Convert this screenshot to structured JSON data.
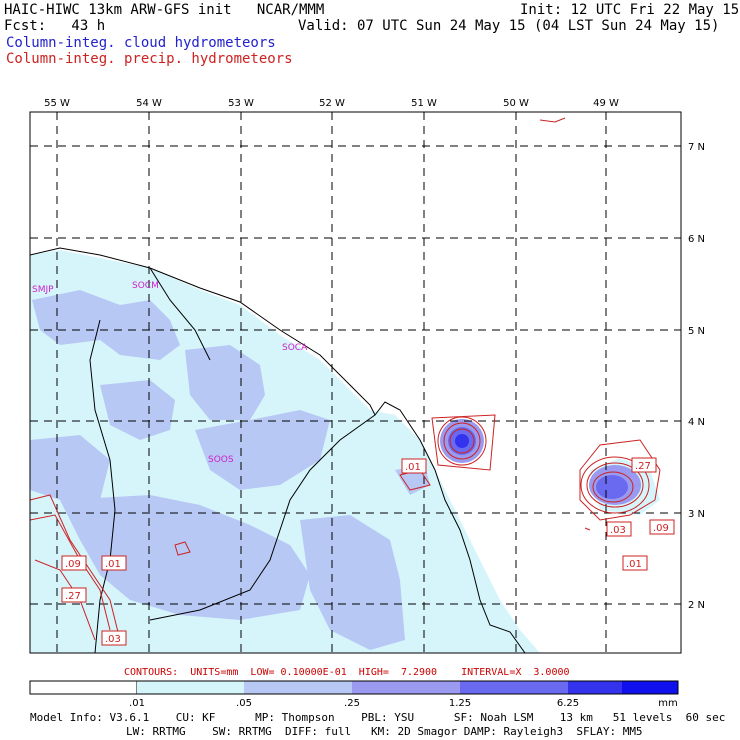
{
  "header": {
    "left1": "HAIC-HIWC 13km ARW-GFS init   NCAR/MMM",
    "left2": "Fcst:   43 h",
    "right1": "Init: 12 UTC Fri 22 May 15",
    "right2": "Valid: 07 UTC Sun 24 May 15 (04 LST Sun 24 May 15)",
    "legend_cloud": "Column-integ. cloud hydrometeors",
    "legend_precip": "Column-integ. precip. hydrometeors"
  },
  "longitudes": [
    "55 W",
    "54 W",
    "53 W",
    "52 W",
    "51 W",
    "50 W",
    "49 W"
  ],
  "latitudes": [
    "7 N",
    "6 N",
    "5 N",
    "4 N",
    "3 N",
    "2 N"
  ],
  "stations": [
    "SMJP",
    "SOCM",
    "SOCA",
    "SOOS"
  ],
  "contour_labels": [
    ".01",
    ".27",
    ".03",
    ".09",
    ".01",
    ".09",
    ".01",
    ".27",
    ".03"
  ],
  "contours_line": "CONTOURS:  UNITS=mm  LOW= 0.10000E-01  HIGH=  7.2900    INTERVAL=X  3.0000",
  "colorbar": {
    "ticks": [
      ".01",
      ".05",
      ".25",
      "1.25",
      "6.25"
    ],
    "units": "mm",
    "colors": [
      "#ffffff",
      "#d6f5fb",
      "#b8c8f5",
      "#9a9af0",
      "#6a6af0",
      "#3333ee",
      "#1010ee"
    ]
  },
  "footer": {
    "line1": "Model Info: V3.6.1    CU: KF      MP: Thompson    PBL: YSU      SF: Noah LSM    13 km   51 levels  60 sec",
    "line2": "LW: RRTMG    SW: RRTMG  DIFF: full   KM: 2D Smagor DAMP: Rayleigh3  SFLAY: MM5"
  }
}
